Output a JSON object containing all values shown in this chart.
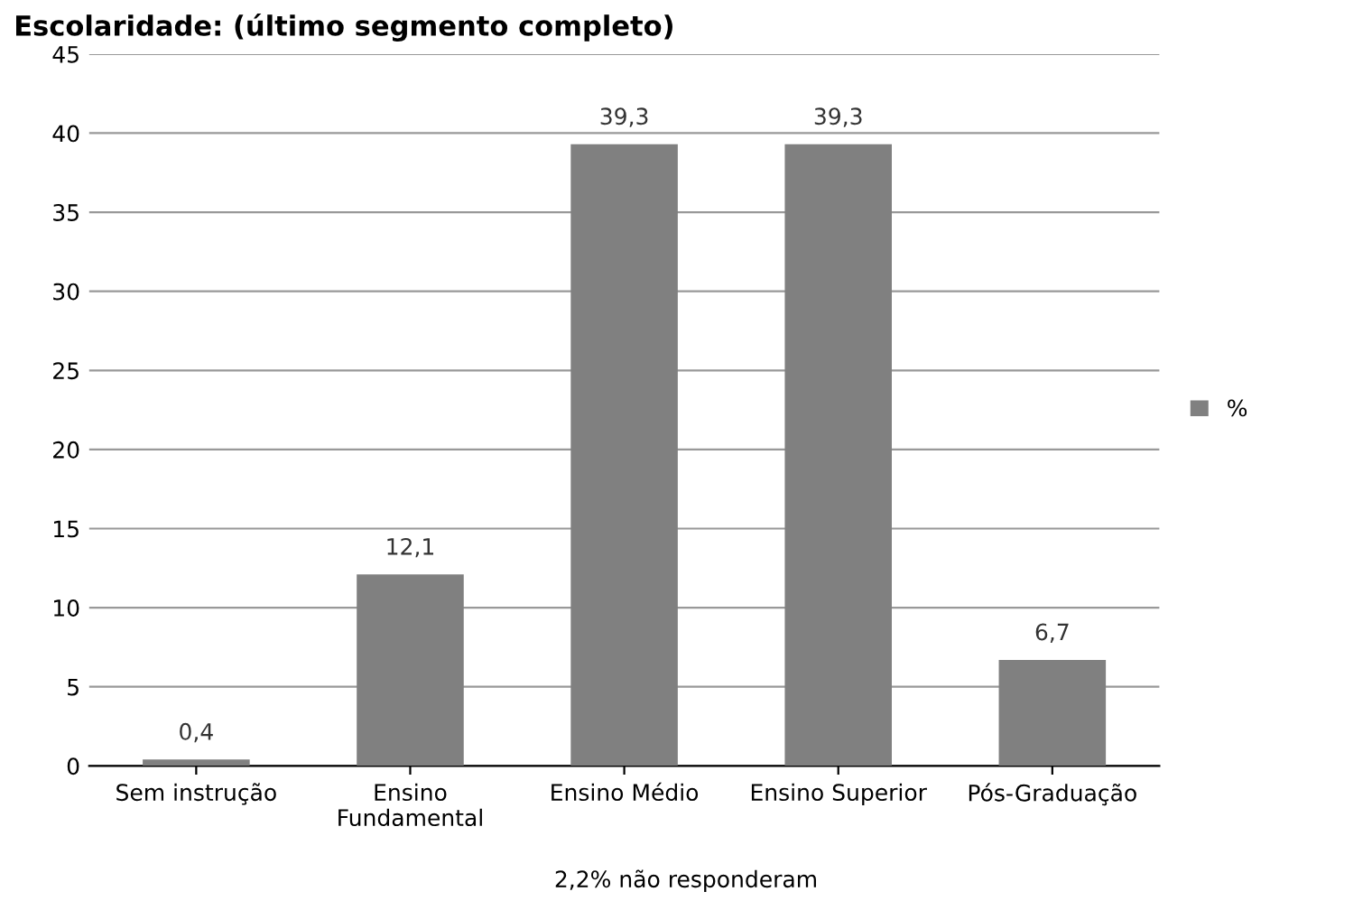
{
  "chart_data": {
    "type": "bar",
    "title": "Escolaridade: (último segmento completo)",
    "categories": [
      "Sem instrução",
      "Ensino\nFundamental",
      "Ensino Médio",
      "Ensino Superior",
      "Pós-Graduação"
    ],
    "series": [
      {
        "name": "%",
        "color": "#808080",
        "values": [
          0.4,
          12.1,
          39.3,
          39.3,
          6.7
        ],
        "value_labels": [
          "0,4",
          "12,1",
          "39,3",
          "39,3",
          "6,7"
        ]
      }
    ],
    "ylim": [
      0,
      45
    ],
    "yticks": [
      0,
      5,
      10,
      15,
      20,
      25,
      30,
      35,
      40,
      45
    ],
    "grid": "y",
    "legend": "right",
    "annotations": [
      "2,2% não responderam"
    ]
  }
}
